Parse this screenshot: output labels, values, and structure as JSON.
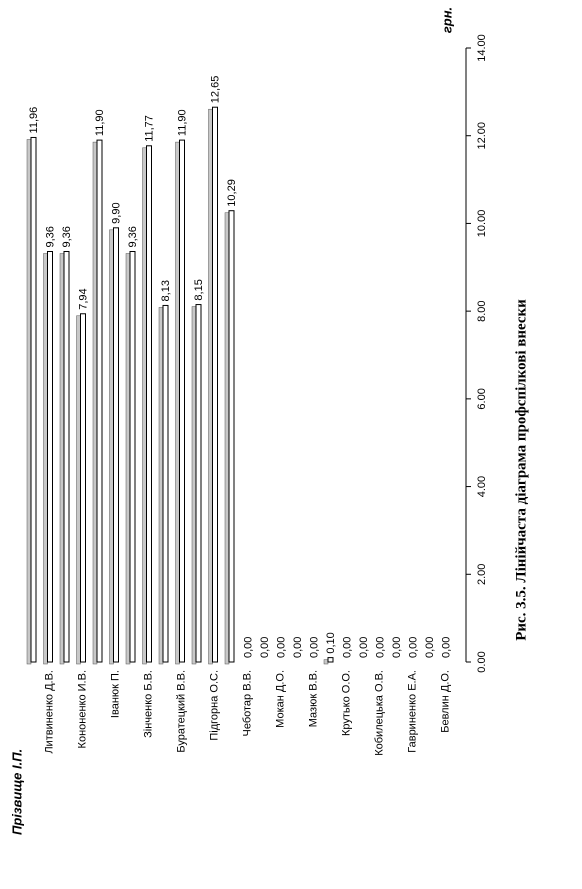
{
  "chart_data": {
    "type": "bar",
    "orientation": "rotated",
    "title": "Рис. 3.5. Лінійчаста діаграма профспілкові внески",
    "x_label": "Прізвище І.П.",
    "y_label": "грн.",
    "categories": [
      null,
      "Литвиненко Д.В.",
      null,
      "Кононенко И.В.",
      null,
      "Іванюк П.",
      null,
      "Зінченко Б.В.",
      null,
      "Буратецкий В.В.",
      null,
      "Підгорна О.С.",
      null,
      "Чеботар В.В.",
      null,
      "Мокан Д.О.",
      null,
      "Мазюк В.В.",
      null,
      "Крутько О.О.",
      null,
      "Кобилецька О.В.",
      null,
      "Гавриненко Е.А.",
      null,
      "Бевлин Д.О."
    ],
    "values": [
      11.96,
      9.36,
      9.36,
      7.94,
      11.9,
      9.9,
      9.36,
      11.77,
      8.13,
      11.9,
      8.15,
      12.65,
      10.29,
      0,
      0,
      0,
      0,
      0,
      0.1,
      0,
      0,
      0,
      0,
      0,
      0,
      0
    ],
    "value_labels": [
      "11,96",
      "9,36",
      "9,36",
      "7,94",
      "11,90",
      "9,90",
      "9,36",
      "11,77",
      "8,13",
      "11,90",
      "8,15",
      "12,65",
      "10,29",
      "0,00",
      "0,00",
      "0,00",
      "0,00",
      "0,00",
      "0,10",
      "0,00",
      "0,00",
      "0,00",
      "0,00",
      "0,00",
      "0,00",
      "0,00"
    ],
    "color": "#ffffff",
    "shadow_color": "#c8c8c8",
    "ylim": [
      0,
      14
    ],
    "yticks": [
      {
        "value": 0,
        "label": "0.00"
      },
      {
        "value": 2,
        "label": "2.00"
      },
      {
        "value": 4,
        "label": "4.00"
      },
      {
        "value": 6,
        "label": "6.00"
      },
      {
        "value": 8,
        "label": "8.00"
      },
      {
        "value": 10,
        "label": "10.00"
      },
      {
        "value": 12,
        "label": "12.00"
      },
      {
        "value": 14,
        "label": "14.00"
      }
    ]
  }
}
